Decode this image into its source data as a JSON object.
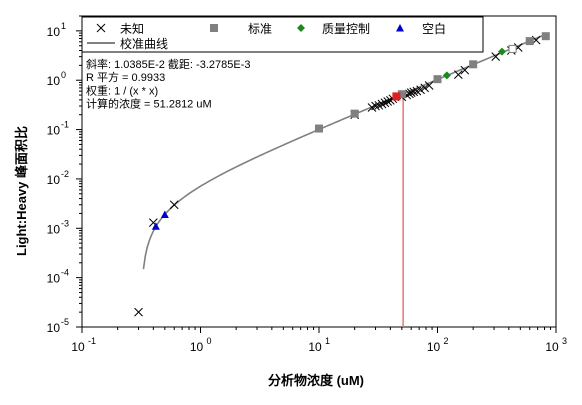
{
  "chart_data": {
    "type": "scatter",
    "xlabel": "分析物浓度 (uM)",
    "ylabel": "Light:Heavy 峰面积比",
    "x_scale": "log",
    "y_scale": "log",
    "xlim": [
      0.1,
      1000
    ],
    "ylim": [
      1e-05,
      20
    ],
    "x_ticks": [
      {
        "value": 0.1,
        "base": "10",
        "exp": "-1"
      },
      {
        "value": 1,
        "base": "10",
        "exp": "0"
      },
      {
        "value": 10,
        "base": "10",
        "exp": "1"
      },
      {
        "value": 100,
        "base": "10",
        "exp": "2"
      },
      {
        "value": 1000,
        "base": "10",
        "exp": "3"
      }
    ],
    "y_ticks": [
      {
        "value": 1e-05,
        "base": "10",
        "exp": "-5"
      },
      {
        "value": 0.0001,
        "base": "10",
        "exp": "-4"
      },
      {
        "value": 0.001,
        "base": "10",
        "exp": "-3"
      },
      {
        "value": 0.01,
        "base": "10",
        "exp": "-2"
      },
      {
        "value": 0.1,
        "base": "10",
        "exp": "-1"
      },
      {
        "value": 1,
        "base": "10",
        "exp": "0"
      },
      {
        "value": 10,
        "base": "10",
        "exp": "1"
      }
    ],
    "grid": false,
    "legend": {
      "placement": "top",
      "entries": [
        {
          "label": "未知",
          "marker": "x",
          "color": "#000000"
        },
        {
          "label": "标准",
          "marker": "square",
          "color": "#808080"
        },
        {
          "label": "质量控制",
          "marker": "diamond",
          "color": "#1a8a1a"
        },
        {
          "label": "空白",
          "marker": "triangle",
          "color": "#0000cc"
        },
        {
          "label": "校准曲线",
          "marker": "line",
          "color": "#808080"
        }
      ]
    },
    "annotations": [
      "斜率: 1.0385E-2 截距: -3.2785E-3",
      "R 平方 = 0.9933",
      "权重: 1 / (x * x)",
      "计算的浓度 = 51.2812 uM"
    ],
    "calibration_curve": {
      "slope": 0.010385,
      "intercept": -0.0032785,
      "x_range": [
        0.33,
        820
      ],
      "color": "#808080"
    },
    "marker_line": {
      "x": 51.2812,
      "color": "#e07070"
    },
    "series": [
      {
        "name": "未知",
        "marker": "x",
        "color": "#000000",
        "points": [
          {
            "x": 0.3,
            "y": 2e-05
          },
          {
            "x": 0.4,
            "y": 0.0013
          },
          {
            "x": 0.6,
            "y": 0.003
          },
          {
            "x": 20,
            "y": 0.2
          },
          {
            "x": 28,
            "y": 0.28
          },
          {
            "x": 30,
            "y": 0.3
          },
          {
            "x": 32,
            "y": 0.31
          },
          {
            "x": 34,
            "y": 0.33
          },
          {
            "x": 36,
            "y": 0.35
          },
          {
            "x": 38,
            "y": 0.37
          },
          {
            "x": 40,
            "y": 0.39
          },
          {
            "x": 42,
            "y": 0.42
          },
          {
            "x": 50,
            "y": 0.46
          },
          {
            "x": 55,
            "y": 0.5
          },
          {
            "x": 58,
            "y": 0.53
          },
          {
            "x": 60,
            "y": 0.56
          },
          {
            "x": 63,
            "y": 0.58
          },
          {
            "x": 67,
            "y": 0.6
          },
          {
            "x": 72,
            "y": 0.64
          },
          {
            "x": 78,
            "y": 0.7
          },
          {
            "x": 85,
            "y": 0.78
          },
          {
            "x": 150,
            "y": 1.3
          },
          {
            "x": 170,
            "y": 1.6
          },
          {
            "x": 310,
            "y": 3.0
          },
          {
            "x": 420,
            "y": 4.0
          },
          {
            "x": 480,
            "y": 4.6
          },
          {
            "x": 680,
            "y": 6.5
          }
        ]
      },
      {
        "name": "标准",
        "marker": "square",
        "color": "#808080",
        "points": [
          {
            "x": 10,
            "y": 0.105
          },
          {
            "x": 20,
            "y": 0.21
          },
          {
            "x": 50,
            "y": 0.52
          },
          {
            "x": 100,
            "y": 1.05
          },
          {
            "x": 200,
            "y": 2.1
          },
          {
            "x": 600,
            "y": 6.2
          },
          {
            "x": 820,
            "y": 7.8
          }
        ]
      },
      {
        "name": "质量控制",
        "marker": "diamond",
        "color": "#1a8a1a",
        "points": [
          {
            "x": 120,
            "y": 1.25
          },
          {
            "x": 350,
            "y": 3.8
          }
        ]
      },
      {
        "name": "空白",
        "marker": "triangle",
        "color": "#0000cc",
        "points": [
          {
            "x": 0.42,
            "y": 0.0011
          },
          {
            "x": 0.5,
            "y": 0.0019
          }
        ]
      },
      {
        "name": "selected",
        "marker": "square",
        "color": "#e02020",
        "points": [
          {
            "x": 45,
            "y": 0.47
          }
        ]
      },
      {
        "name": "open",
        "marker": "open-square",
        "color": "#808080",
        "points": [
          {
            "x": 430,
            "y": 4.3
          }
        ]
      }
    ]
  }
}
